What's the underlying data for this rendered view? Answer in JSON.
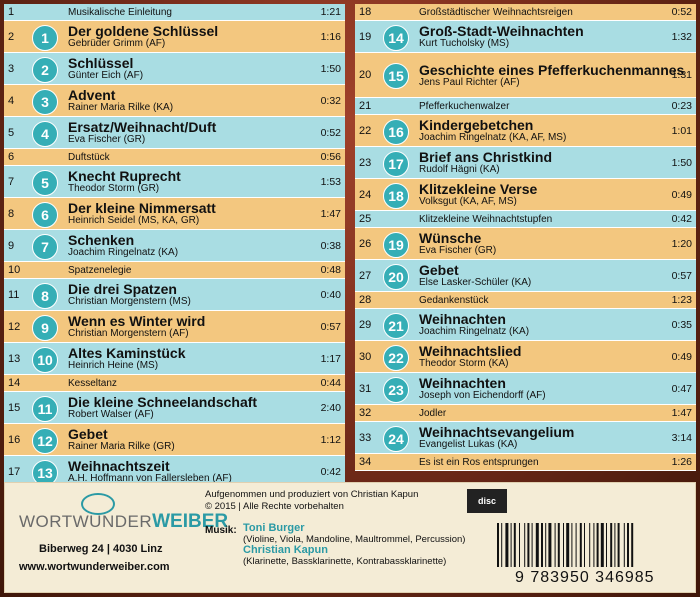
{
  "tracks_left": [
    {
      "no": "1",
      "circle": "",
      "title": "",
      "sub": "",
      "inter": "Musikalische Einleitung",
      "dur": "1:21",
      "color": "blue"
    },
    {
      "no": "2",
      "circle": "1",
      "title": "Der goldene Schlüssel",
      "sub": "Gebrüder Grimm (AF)",
      "inter": "",
      "dur": "1:16",
      "color": "yellow"
    },
    {
      "no": "3",
      "circle": "2",
      "title": "Schlüssel",
      "sub": "Günter Eich (AF)",
      "inter": "",
      "dur": "1:50",
      "color": "blue"
    },
    {
      "no": "4",
      "circle": "3",
      "title": "Advent",
      "sub": "Rainer Maria Rilke (KA)",
      "inter": "",
      "dur": "0:32",
      "color": "yellow"
    },
    {
      "no": "5",
      "circle": "4",
      "title": "Ersatz/Weihnacht/Duft",
      "sub": "Eva Fischer (GR)",
      "inter": "",
      "dur": "0:52",
      "color": "blue"
    },
    {
      "no": "6",
      "circle": "",
      "title": "",
      "sub": "",
      "inter": "Duftstück",
      "dur": "0:56",
      "color": "yellow"
    },
    {
      "no": "7",
      "circle": "5",
      "title": "Knecht Ruprecht",
      "sub": "Theodor Storm (GR)",
      "inter": "",
      "dur": "1:53",
      "color": "blue"
    },
    {
      "no": "8",
      "circle": "6",
      "title": "Der kleine Nimmersatt",
      "sub": "Heinrich Seidel (MS, KA, GR)",
      "inter": "",
      "dur": "1:47",
      "color": "yellow"
    },
    {
      "no": "9",
      "circle": "7",
      "title": "Schenken",
      "sub": "Joachim Ringelnatz (KA)",
      "inter": "",
      "dur": "0:38",
      "color": "blue"
    },
    {
      "no": "10",
      "circle": "",
      "title": "",
      "sub": "",
      "inter": "Spatzenelegie",
      "dur": "0:48",
      "color": "yellow"
    },
    {
      "no": "11",
      "circle": "8",
      "title": "Die drei Spatzen",
      "sub": "Christian Morgenstern (MS)",
      "inter": "",
      "dur": "0:40",
      "color": "blue"
    },
    {
      "no": "12",
      "circle": "9",
      "title": "Wenn es Winter wird",
      "sub": "Christian Morgenstern (AF)",
      "inter": "",
      "dur": "0:57",
      "color": "yellow"
    },
    {
      "no": "13",
      "circle": "10",
      "title": "Altes Kaminstück",
      "sub": "Heinrich Heine (MS)",
      "inter": "",
      "dur": "1:17",
      "color": "blue"
    },
    {
      "no": "14",
      "circle": "",
      "title": "",
      "sub": "",
      "inter": "Kesseltanz",
      "dur": "0:44",
      "color": "yellow"
    },
    {
      "no": "15",
      "circle": "11",
      "title": "Die kleine Schneelandschaft",
      "sub": "Robert Walser (AF)",
      "inter": "",
      "dur": "2:40",
      "color": "blue"
    },
    {
      "no": "16",
      "circle": "12",
      "title": "Gebet",
      "sub": "Rainer Maria Rilke (GR)",
      "inter": "",
      "dur": "1:12",
      "color": "yellow"
    },
    {
      "no": "17",
      "circle": "13",
      "title": "Weihnachtszeit",
      "sub": "A.H. Hoffmann von Fallersleben (AF)",
      "inter": "",
      "dur": "0:42",
      "color": "blue"
    }
  ],
  "tracks_right": [
    {
      "no": "18",
      "circle": "",
      "title": "",
      "sub": "",
      "inter": "Großstädtischer Weihnachtsreigen",
      "dur": "0:52",
      "color": "yellow"
    },
    {
      "no": "19",
      "circle": "14",
      "title": "Groß-Stadt-Weihnachten",
      "sub": "Kurt Tucholsky (MS)",
      "inter": "",
      "dur": "1:32",
      "color": "blue"
    },
    {
      "no": "20",
      "circle": "15",
      "title": "Geschichte eines Pfefferkuchenmannes",
      "sub": "Jens Paul Richter (AF)",
      "inter": "",
      "dur": "1:31",
      "color": "yellow"
    },
    {
      "no": "21",
      "circle": "",
      "title": "",
      "sub": "",
      "inter": "Pfefferkuchenwalzer",
      "dur": "0:23",
      "color": "blue"
    },
    {
      "no": "22",
      "circle": "16",
      "title": "Kindergebetchen",
      "sub": "Joachim Ringelnatz (KA, AF, MS)",
      "inter": "",
      "dur": "1:01",
      "color": "yellow"
    },
    {
      "no": "23",
      "circle": "17",
      "title": "Brief ans Christkind",
      "sub": "Rudolf Hägni (KA)",
      "inter": "",
      "dur": "1:50",
      "color": "blue"
    },
    {
      "no": "24",
      "circle": "18",
      "title": "Klitzekleine Verse",
      "sub": "Volksgut (KA, AF, MS)",
      "inter": "",
      "dur": "0:49",
      "color": "yellow"
    },
    {
      "no": "25",
      "circle": "",
      "title": "",
      "sub": "",
      "inter": "Klitzekleine Weihnachtstupfen",
      "dur": "0:42",
      "color": "blue"
    },
    {
      "no": "26",
      "circle": "19",
      "title": "Wünsche",
      "sub": "Eva Fischer (GR)",
      "inter": "",
      "dur": "1:20",
      "color": "yellow"
    },
    {
      "no": "27",
      "circle": "20",
      "title": "Gebet",
      "sub": "Else Lasker-Schüler (KA)",
      "inter": "",
      "dur": "0:57",
      "color": "blue"
    },
    {
      "no": "28",
      "circle": "",
      "title": "",
      "sub": "",
      "inter": "Gedankenstück",
      "dur": "1:23",
      "color": "yellow"
    },
    {
      "no": "29",
      "circle": "21",
      "title": "Weihnachten",
      "sub": "Joachim Ringelnatz (KA)",
      "inter": "",
      "dur": "0:35",
      "color": "blue"
    },
    {
      "no": "30",
      "circle": "22",
      "title": "Weihnachtslied",
      "sub": "Theodor Storm (KA)",
      "inter": "",
      "dur": "0:49",
      "color": "yellow"
    },
    {
      "no": "31",
      "circle": "23",
      "title": "Weihnachten",
      "sub": "Joseph von Eichendorff (AF)",
      "inter": "",
      "dur": "0:47",
      "color": "blue"
    },
    {
      "no": "32",
      "circle": "",
      "title": "",
      "sub": "",
      "inter": "Jodler",
      "dur": "1:47",
      "color": "yellow"
    },
    {
      "no": "33",
      "circle": "24",
      "title": "Weihnachtsevangelium",
      "sub": "Evangelist Lukas (KA)",
      "inter": "",
      "dur": "3:14",
      "color": "blue"
    },
    {
      "no": "34",
      "circle": "",
      "title": "",
      "sub": "",
      "inter": "Es ist ein Ros entsprungen",
      "dur": "1:26",
      "color": "yellow"
    }
  ],
  "footer": {
    "logo_wort": "WORTWUNDER",
    "logo_weiber": "WEIBER",
    "address": "Biberweg 24 | 4030 Linz",
    "website": "www.wortwunderweiber.com",
    "prod_line1": "Aufgenommen und produziert von Christian Kapun",
    "prod_line2": "© 2015 | Alle Rechte vorbehalten",
    "musik_label": "Musik:",
    "musician1_name": "Toni Burger",
    "musician1_instruments": "(Violine, Viola, Mandoline, Maultrommel, Percussion)",
    "musician2_name": "Christian Kapun",
    "musician2_instruments": "(Klarinette, Bassklarinette, Kontrabassklarinette)",
    "cd_logo": "disc",
    "barcode_number": "9 783950 346985"
  },
  "colors": {
    "blue": "#a9dde3",
    "yellow": "#f3c77f",
    "accent": "#35aeb6"
  }
}
